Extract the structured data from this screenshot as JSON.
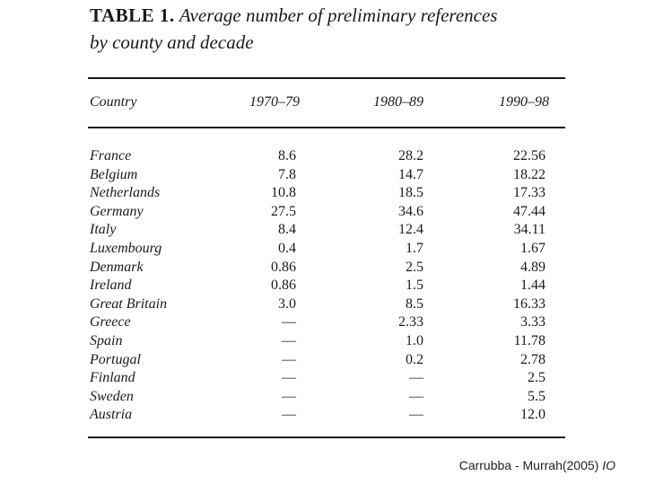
{
  "table": {
    "label": "TABLE 1.",
    "title_line1": "Average number of preliminary references",
    "title_line2": "by county and decade",
    "columns": [
      "Country",
      "1970–79",
      "1980–89",
      "1990–98"
    ],
    "rows": [
      {
        "country": "France",
        "d1": "8.6",
        "d2": "28.2",
        "d3": "22.56"
      },
      {
        "country": "Belgium",
        "d1": "7.8",
        "d2": "14.7",
        "d3": "18.22"
      },
      {
        "country": "Netherlands",
        "d1": "10.8",
        "d2": "18.5",
        "d3": "17.33"
      },
      {
        "country": "Germany",
        "d1": "27.5",
        "d2": "34.6",
        "d3": "47.44"
      },
      {
        "country": "Italy",
        "d1": "8.4",
        "d2": "12.4",
        "d3": "34.11"
      },
      {
        "country": "Luxembourg",
        "d1": "0.4",
        "d2": "1.7",
        "d3": "1.67"
      },
      {
        "country": "Denmark",
        "d1": "0.86",
        "d2": "2.5",
        "d3": "4.89"
      },
      {
        "country": "Ireland",
        "d1": "0.86",
        "d2": "1.5",
        "d3": "1.44"
      },
      {
        "country": "Great Britain",
        "d1": "3.0",
        "d2": "8.5",
        "d3": "16.33"
      },
      {
        "country": "Greece",
        "d1": "—",
        "d2": "2.33",
        "d3": "3.33"
      },
      {
        "country": "Spain",
        "d1": "—",
        "d2": "1.0",
        "d3": "11.78"
      },
      {
        "country": "Portugal",
        "d1": "—",
        "d2": "0.2",
        "d3": "2.78"
      },
      {
        "country": "Finland",
        "d1": "—",
        "d2": "—",
        "d3": "2.5"
      },
      {
        "country": "Sweden",
        "d1": "—",
        "d2": "—",
        "d3": "5.5"
      },
      {
        "country": "Austria",
        "d1": "—",
        "d2": "—",
        "d3": "12.0"
      }
    ]
  },
  "citation": {
    "authors": "Carrubba - Murrah(2005)",
    "journal": "IO"
  }
}
